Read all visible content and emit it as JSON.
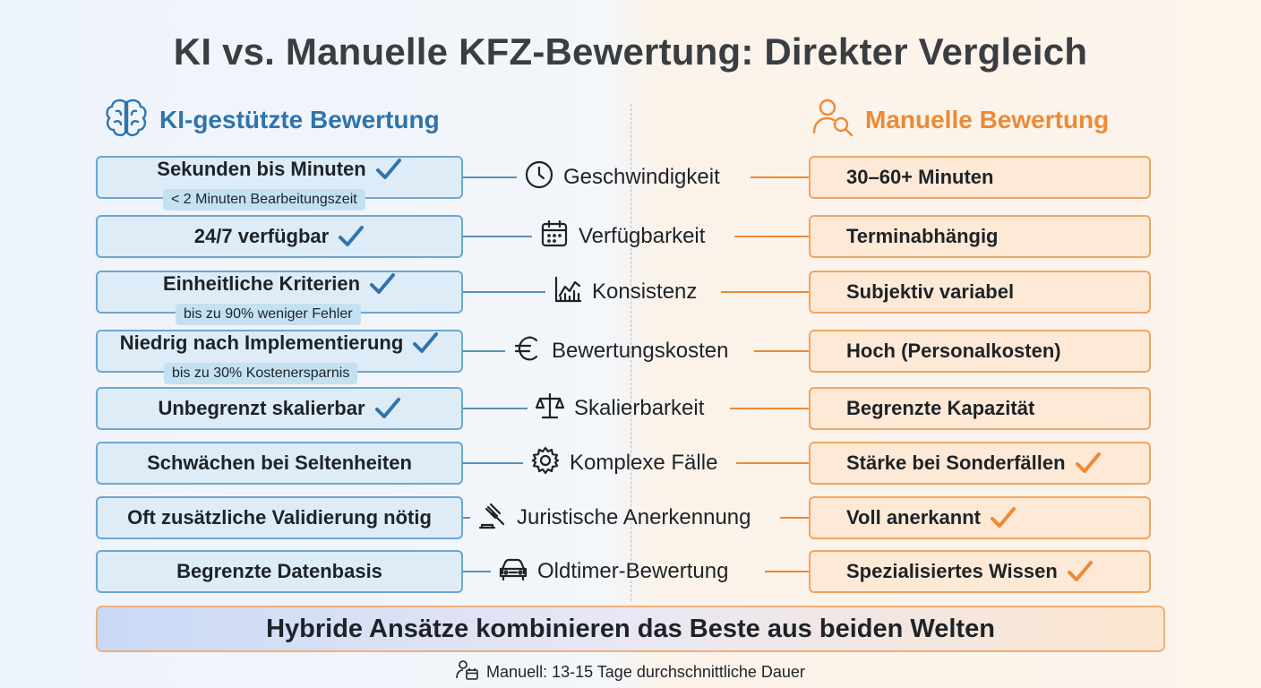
{
  "title": "KI vs. Manuelle KFZ-Bewertung: Direkter Vergleich",
  "left_heading": "KI-gestützte Bewertung",
  "right_heading": "Manuelle Bewertung",
  "rows": [
    {
      "criterion": "Geschwindigkeit",
      "icon": "clock-icon",
      "ki": "Sekunden bis Minuten",
      "ki_sub": "< 2 Minuten Bearbeitungszeit",
      "ki_check": true,
      "manual": "30–60+ Minuten",
      "manual_check": false
    },
    {
      "criterion": "Verfügbarkeit",
      "icon": "calendar-icon",
      "ki": "24/7 verfügbar",
      "ki_sub": "",
      "ki_check": true,
      "manual": "Terminabhängig",
      "manual_check": false
    },
    {
      "criterion": "Konsistenz",
      "icon": "chart-icon",
      "ki": "Einheitliche Kriterien",
      "ki_sub": "bis zu 90% weniger Fehler",
      "ki_check": true,
      "manual": "Subjektiv variabel",
      "manual_check": false
    },
    {
      "criterion": "Bewertungskosten",
      "icon": "euro-icon",
      "ki": "Niedrig nach Implementierung",
      "ki_sub": "bis zu 30% Kostenersparnis",
      "ki_check": true,
      "manual": "Hoch (Personalkosten)",
      "manual_check": false
    },
    {
      "criterion": "Skalierbarkeit",
      "icon": "scale-icon",
      "ki": "Unbegrenzt skalierbar",
      "ki_sub": "",
      "ki_check": true,
      "manual": "Begrenzte Kapazität",
      "manual_check": false
    },
    {
      "criterion": "Komplexe Fälle",
      "icon": "gear-icon",
      "ki": "Schwächen bei Seltenheiten",
      "ki_sub": "",
      "ki_check": false,
      "manual": "Stärke bei Sonderfällen",
      "manual_check": true
    },
    {
      "criterion": "Juristische Anerkennung",
      "icon": "gavel-icon",
      "ki": "Oft zusätzliche Validierung nötig",
      "ki_sub": "",
      "ki_check": false,
      "manual": "Voll anerkannt",
      "manual_check": true
    },
    {
      "criterion": "Oldtimer-Bewertung",
      "icon": "car-icon",
      "ki": "Begrenzte Datenbasis",
      "ki_sub": "",
      "ki_check": false,
      "manual": "Spezialisiertes Wissen",
      "manual_check": true
    }
  ],
  "banner": "Hybride Ansätze kombinieren das Beste aus beiden Welten",
  "footer": "Manuell: 13-15 Tage durchschnittliche Dauer",
  "colors": {
    "ki_accent": "#2f74ad",
    "manual_accent": "#ec8a36"
  }
}
